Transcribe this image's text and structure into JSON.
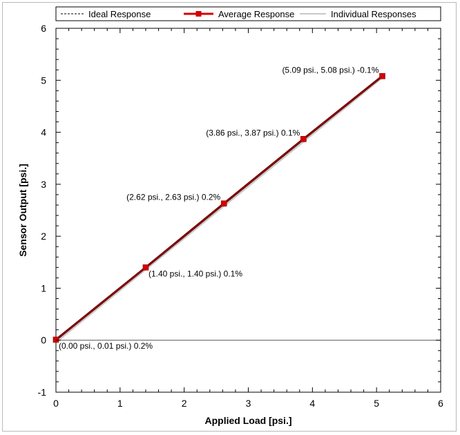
{
  "chart_data": {
    "type": "line",
    "xlabel": "Applied Load [psi.]",
    "ylabel": "Sensor Output [psi.]",
    "xlim": [
      0,
      6
    ],
    "ylim": [
      -1,
      6
    ],
    "x_ticks": [
      0,
      1,
      2,
      3,
      4,
      5,
      6
    ],
    "y_ticks": [
      -1,
      0,
      1,
      2,
      3,
      4,
      5,
      6
    ],
    "grid": false,
    "legend_position": "top",
    "series": [
      {
        "name": "Ideal Response",
        "style": "dashed",
        "color": "#000000",
        "x": [
          0,
          5.09
        ],
        "y": [
          0,
          5.09
        ]
      },
      {
        "name": "Average Response",
        "style": "solid-with-square-markers",
        "color": "#d40000",
        "x": [
          0.0,
          1.4,
          2.62,
          3.86,
          5.09
        ],
        "y": [
          0.01,
          1.4,
          2.63,
          3.87,
          5.08
        ]
      },
      {
        "name": "Individual Responses",
        "style": "thin",
        "color": "#c8c8c8",
        "x": [
          0,
          5.09
        ],
        "y": [
          0,
          5.09
        ]
      }
    ],
    "annotations": [
      {
        "text": "(0.00 psi., 0.01 psi.) 0.2%",
        "x": 0.0,
        "y": 0.01,
        "anchor": "below-right"
      },
      {
        "text": "(1.40 psi., 1.40 psi.) 0.1%",
        "x": 1.4,
        "y": 1.4,
        "anchor": "below-right"
      },
      {
        "text": "(2.62 psi., 2.63 psi.) 0.2%",
        "x": 2.62,
        "y": 2.63,
        "anchor": "above-left"
      },
      {
        "text": "(3.86 psi., 3.87 psi.) 0.1%",
        "x": 3.86,
        "y": 3.87,
        "anchor": "above-left"
      },
      {
        "text": "(5.09 psi., 5.08 psi.) -0.1%",
        "x": 5.09,
        "y": 5.08,
        "anchor": "above-left"
      }
    ],
    "reference_lines": [
      {
        "axis": "y",
        "value": 0,
        "color": "#555555"
      }
    ]
  }
}
